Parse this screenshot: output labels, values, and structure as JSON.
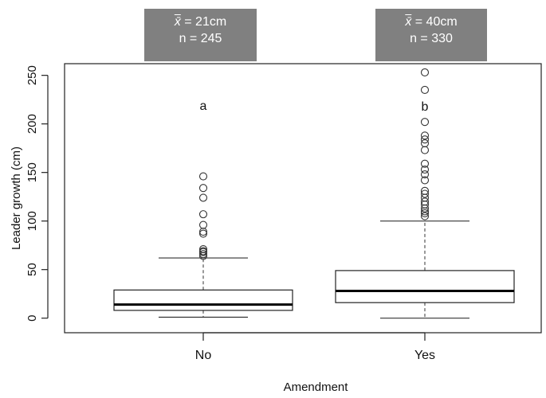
{
  "chart_data": {
    "type": "boxplot",
    "xlabel": "Amendment",
    "ylabel": "Leader growth (cm)",
    "ylim": [
      -15,
      262
    ],
    "yticks": [
      0,
      50,
      100,
      150,
      200,
      250
    ],
    "grid": false,
    "categories": [
      "No",
      "Yes"
    ],
    "boxes": [
      {
        "category": "No",
        "whisker_low": 1,
        "q1": 8,
        "median": 14,
        "q3": 29,
        "whisker_high": 62,
        "outliers": [
          64,
          66,
          68,
          69,
          71,
          87,
          89,
          96,
          107,
          124,
          134,
          146
        ],
        "letter": "a",
        "mean_symbol": "x̄",
        "mean_text": " = 21cm",
        "n_text": "n = 245"
      },
      {
        "category": "Yes",
        "whisker_low": 0,
        "q1": 16,
        "median": 28,
        "q3": 49,
        "whisker_high": 100,
        "outliers": [
          105,
          108,
          110,
          113,
          117,
          120,
          124,
          128,
          131,
          142,
          148,
          153,
          159,
          173,
          180,
          184,
          188,
          202,
          235,
          253
        ],
        "letter": "b",
        "mean_symbol": "x̄",
        "mean_text": " = 40cm",
        "n_text": "n = 330"
      }
    ]
  }
}
